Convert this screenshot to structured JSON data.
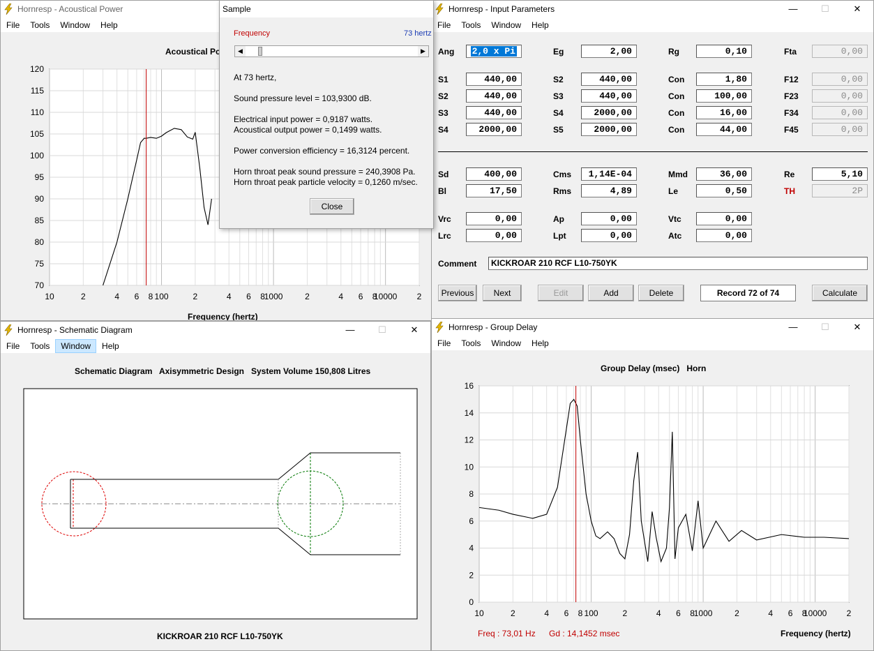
{
  "apptitle_prefix": "Hornresp",
  "acoustical": {
    "title": "Hornresp - Acoustical Power",
    "menu": [
      "File",
      "Tools",
      "Window",
      "Help"
    ],
    "chart_title": "Acoustical Po",
    "xlabel": "Frequency (hertz)"
  },
  "sample": {
    "title": "Sample",
    "freq_label": "Frequency",
    "freq_value": "73 hertz",
    "at": "At 73 hertz,",
    "spl": "Sound pressure level = 103,9300 dB.",
    "elec": "Electrical input power = 0,9187 watts.",
    "acou": "Acoustical output power = 0,1499 watts.",
    "eff": "Power conversion efficiency = 16,3124 percent.",
    "throat_p": "Horn throat peak sound pressure = 240,3908 Pa.",
    "throat_v": "Horn throat peak particle velocity = 0,1260 m/sec.",
    "close": "Close"
  },
  "input": {
    "title": "Hornresp - Input Parameters",
    "menu": [
      "File",
      "Tools",
      "Window",
      "Help"
    ],
    "fields": {
      "ang": "2,0 x Pi",
      "eg": "2,00",
      "rg": "0,10",
      "fta": "0,00",
      "s1a": "440,00",
      "s2a": "440,00",
      "con1": "1,80",
      "f12": "0,00",
      "s2b": "440,00",
      "s3a": "440,00",
      "con2": "100,00",
      "f23": "0,00",
      "s3b": "440,00",
      "s4a": "2000,00",
      "con3": "16,00",
      "f34": "0,00",
      "s4b": "2000,00",
      "s5a": "2000,00",
      "con4": "44,00",
      "f45": "0,00",
      "sd": "400,00",
      "cms": "1,14E-04",
      "mmd": "36,00",
      "re": "5,10",
      "bl": "17,50",
      "rms": "4,89",
      "le": "0,50",
      "th": "2P",
      "vrc": "0,00",
      "ap": "0,00",
      "vtc": "0,00",
      "lrc": "0,00",
      "lpt": "0,00",
      "atc": "0,00"
    },
    "labels": {
      "ang": "Ang",
      "eg": "Eg",
      "rg": "Rg",
      "fta": "Fta",
      "s1": "S1",
      "s2": "S2",
      "s3": "S3",
      "s4": "S4",
      "s5": "S5",
      "con": "Con",
      "f12": "F12",
      "f23": "F23",
      "f34": "F34",
      "f45": "F45",
      "sd": "Sd",
      "cms": "Cms",
      "mmd": "Mmd",
      "re": "Re",
      "bl": "Bl",
      "rms": "Rms",
      "le": "Le",
      "th": "TH",
      "vrc": "Vrc",
      "ap": "Ap",
      "vtc": "Vtc",
      "lrc": "Lrc",
      "lpt": "Lpt",
      "atc": "Atc",
      "comment": "Comment"
    },
    "comment": "KICKROAR 210 RCF L10-750YK",
    "buttons": {
      "previous": "Previous",
      "next": "Next",
      "edit": "Edit",
      "add": "Add",
      "delete": "Delete",
      "calculate": "Calculate"
    },
    "record": "Record 72 of 74"
  },
  "schematic": {
    "title": "Hornresp - Schematic Diagram",
    "menu": [
      "File",
      "Tools",
      "Window",
      "Help"
    ],
    "heading": "Schematic Diagram   Axisymmetric Design   System Volume 150,808 Litres",
    "footer": "KICKROAR 210 RCF L10-750YK"
  },
  "group": {
    "title": "Hornresp - Group Delay",
    "menu": [
      "File",
      "Tools",
      "Window",
      "Help"
    ],
    "heading": "Group Delay (msec)   Horn",
    "readout_freq": "Freq : 73,01 Hz",
    "readout_gd": "Gd : 14,1452 msec",
    "xlabel": "Frequency (hertz)"
  },
  "colors": {
    "accent_red": "#c00000",
    "cursor_line": "#c00000",
    "highlight": "#0078d7"
  },
  "chart_data": [
    {
      "type": "line",
      "title": "Acoustical Power",
      "xlabel": "Frequency (hertz)",
      "xscale": "log",
      "xlim": [
        10,
        20000
      ],
      "ylim": [
        70,
        120
      ],
      "yticks": [
        70,
        75,
        80,
        85,
        90,
        95,
        100,
        105,
        110,
        115,
        120
      ],
      "xticklabels": [
        "10",
        "2",
        "4",
        "6",
        "8",
        "100",
        "2",
        "4",
        "6",
        "8",
        "1000",
        "2",
        "4",
        "6",
        "8",
        "10000",
        "2"
      ],
      "cursor_x": 73,
      "series": [
        {
          "x": [
            30,
            40,
            50,
            60,
            65,
            70,
            73,
            80,
            90,
            100,
            110,
            130,
            150,
            170,
            190,
            200,
            220,
            240,
            260,
            280
          ],
          "y": [
            70,
            80,
            90,
            99,
            103,
            104,
            104,
            104.2,
            104,
            104.5,
            105.3,
            106.3,
            106,
            104.3,
            103.8,
            105.4,
            97,
            88,
            84,
            90
          ]
        }
      ]
    },
    {
      "type": "line",
      "title": "Group Delay (msec)   Horn",
      "xlabel": "Frequency (hertz)",
      "xscale": "log",
      "xlim": [
        10,
        20000
      ],
      "ylim": [
        0,
        16
      ],
      "yticks": [
        0,
        2,
        4,
        6,
        8,
        10,
        12,
        14,
        16
      ],
      "xticklabels": [
        "10",
        "2",
        "4",
        "6",
        "8",
        "100",
        "2",
        "4",
        "6",
        "8",
        "1000",
        "2",
        "4",
        "6",
        "8",
        "10000",
        "2"
      ],
      "cursor_x": 73,
      "series": [
        {
          "x": [
            10,
            15,
            20,
            30,
            40,
            50,
            60,
            65,
            70,
            75,
            80,
            90,
            100,
            110,
            120,
            140,
            160,
            180,
            200,
            220,
            240,
            260,
            280,
            320,
            350,
            380,
            420,
            470,
            500,
            530,
            560,
            600,
            700,
            800,
            900,
            1000,
            1300,
            1700,
            2200,
            3000,
            5000,
            8000,
            12000,
            20000
          ],
          "y": [
            7,
            6.8,
            6.5,
            6.2,
            6.5,
            8.5,
            12.8,
            14.7,
            15,
            14.5,
            12,
            8,
            6,
            4.9,
            4.7,
            5.2,
            4.7,
            3.6,
            3.2,
            5,
            9,
            11.1,
            6,
            3,
            6.7,
            4.8,
            3,
            4,
            7,
            12.6,
            3.2,
            5.5,
            6.5,
            3.8,
            7.5,
            4,
            6,
            4.5,
            5.3,
            4.6,
            5,
            4.8,
            4.8,
            4.7
          ]
        }
      ]
    }
  ]
}
